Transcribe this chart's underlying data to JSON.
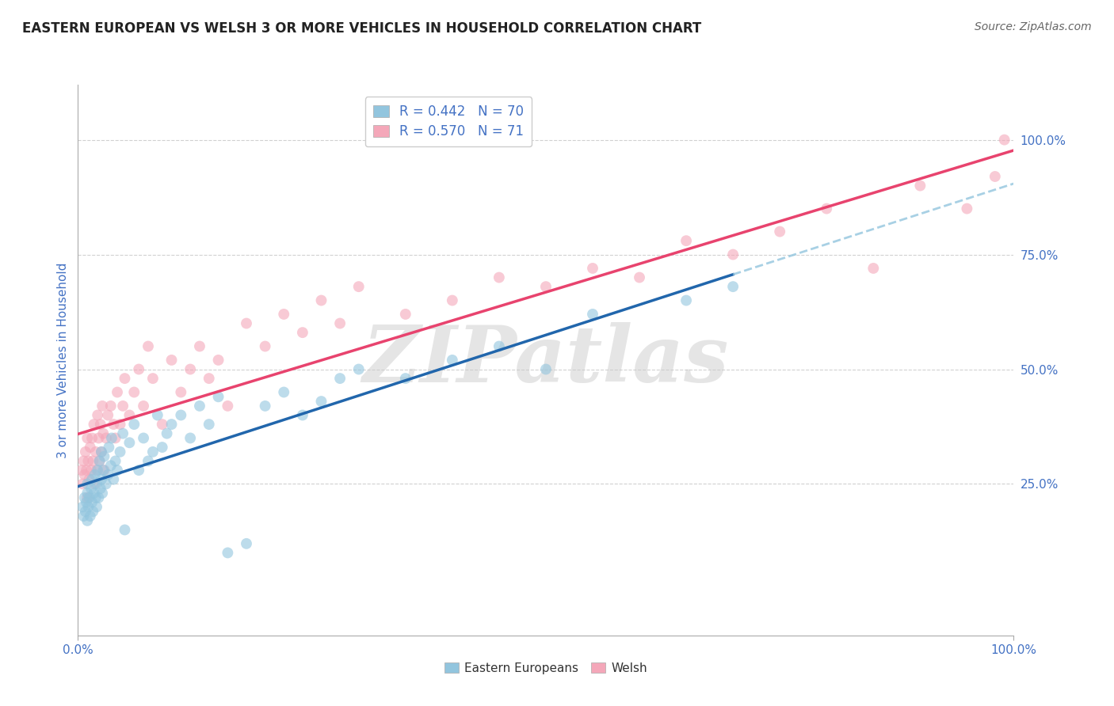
{
  "title": "EASTERN EUROPEAN VS WELSH 3 OR MORE VEHICLES IN HOUSEHOLD CORRELATION CHART",
  "source": "Source: ZipAtlas.com",
  "ylabel": "3 or more Vehicles in Household",
  "xlim": [
    0,
    1
  ],
  "ylim": [
    -0.08,
    1.12
  ],
  "y_tick_labels": [
    "25.0%",
    "50.0%",
    "75.0%",
    "100.0%"
  ],
  "y_tick_positions": [
    0.25,
    0.5,
    0.75,
    1.0
  ],
  "legend_label_eastern": "Eastern Europeans",
  "legend_label_welsh": "Welsh",
  "scatter_color_eastern": "#92c5de",
  "scatter_color_welsh": "#f4a7b9",
  "line_color_eastern": "#2166ac",
  "line_color_welsh": "#e8436e",
  "dashed_color": "#92c5de",
  "watermark": "ZIPatlas",
  "title_color": "#222222",
  "source_color": "#666666",
  "axis_label_color": "#4472c4",
  "grid_color": "#cccccc",
  "eastern_x": [
    0.005,
    0.006,
    0.007,
    0.008,
    0.009,
    0.01,
    0.01,
    0.01,
    0.011,
    0.012,
    0.013,
    0.014,
    0.015,
    0.015,
    0.016,
    0.017,
    0.018,
    0.019,
    0.02,
    0.02,
    0.021,
    0.022,
    0.023,
    0.024,
    0.025,
    0.025,
    0.026,
    0.027,
    0.028,
    0.03,
    0.032,
    0.033,
    0.035,
    0.036,
    0.038,
    0.04,
    0.042,
    0.045,
    0.048,
    0.05,
    0.055,
    0.06,
    0.065,
    0.07,
    0.075,
    0.08,
    0.085,
    0.09,
    0.095,
    0.1,
    0.11,
    0.12,
    0.13,
    0.14,
    0.15,
    0.16,
    0.18,
    0.2,
    0.22,
    0.24,
    0.26,
    0.28,
    0.3,
    0.35,
    0.4,
    0.45,
    0.5,
    0.55,
    0.65,
    0.7
  ],
  "eastern_y": [
    0.2,
    0.18,
    0.22,
    0.19,
    0.21,
    0.23,
    0.17,
    0.25,
    0.2,
    0.22,
    0.18,
    0.24,
    0.21,
    0.26,
    0.19,
    0.23,
    0.27,
    0.22,
    0.2,
    0.25,
    0.28,
    0.22,
    0.3,
    0.24,
    0.26,
    0.32,
    0.23,
    0.28,
    0.31,
    0.25,
    0.27,
    0.33,
    0.29,
    0.35,
    0.26,
    0.3,
    0.28,
    0.32,
    0.36,
    0.15,
    0.34,
    0.38,
    0.28,
    0.35,
    0.3,
    0.32,
    0.4,
    0.33,
    0.36,
    0.38,
    0.4,
    0.35,
    0.42,
    0.38,
    0.44,
    0.1,
    0.12,
    0.42,
    0.45,
    0.4,
    0.43,
    0.48,
    0.5,
    0.48,
    0.52,
    0.55,
    0.5,
    0.62,
    0.65,
    0.68
  ],
  "welsh_x": [
    0.004,
    0.005,
    0.006,
    0.007,
    0.008,
    0.009,
    0.01,
    0.01,
    0.011,
    0.012,
    0.013,
    0.014,
    0.015,
    0.016,
    0.017,
    0.018,
    0.019,
    0.02,
    0.021,
    0.022,
    0.023,
    0.024,
    0.025,
    0.026,
    0.027,
    0.028,
    0.03,
    0.032,
    0.035,
    0.038,
    0.04,
    0.042,
    0.045,
    0.048,
    0.05,
    0.055,
    0.06,
    0.065,
    0.07,
    0.075,
    0.08,
    0.09,
    0.1,
    0.11,
    0.12,
    0.13,
    0.14,
    0.15,
    0.16,
    0.18,
    0.2,
    0.22,
    0.24,
    0.26,
    0.28,
    0.3,
    0.35,
    0.4,
    0.45,
    0.5,
    0.55,
    0.6,
    0.65,
    0.7,
    0.75,
    0.8,
    0.85,
    0.9,
    0.95,
    0.98,
    0.99
  ],
  "welsh_y": [
    0.28,
    0.25,
    0.3,
    0.27,
    0.32,
    0.28,
    0.22,
    0.35,
    0.3,
    0.26,
    0.33,
    0.28,
    0.35,
    0.3,
    0.38,
    0.25,
    0.32,
    0.28,
    0.4,
    0.35,
    0.3,
    0.38,
    0.32,
    0.42,
    0.36,
    0.28,
    0.35,
    0.4,
    0.42,
    0.38,
    0.35,
    0.45,
    0.38,
    0.42,
    0.48,
    0.4,
    0.45,
    0.5,
    0.42,
    0.55,
    0.48,
    0.38,
    0.52,
    0.45,
    0.5,
    0.55,
    0.48,
    0.52,
    0.42,
    0.6,
    0.55,
    0.62,
    0.58,
    0.65,
    0.6,
    0.68,
    0.62,
    0.65,
    0.7,
    0.68,
    0.72,
    0.7,
    0.78,
    0.75,
    0.8,
    0.85,
    0.72,
    0.9,
    0.85,
    0.92,
    1.0
  ]
}
